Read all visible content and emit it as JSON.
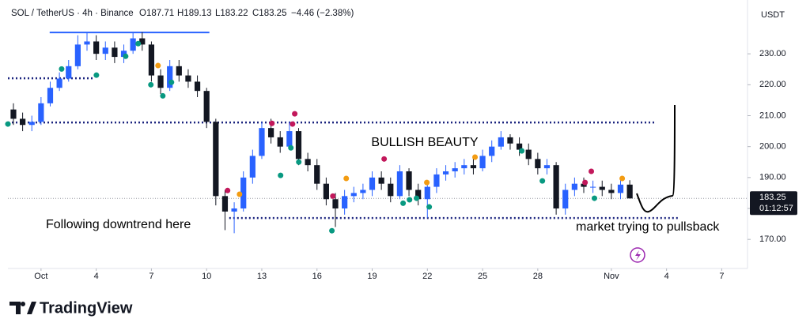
{
  "chart_data": {
    "type": "candlestick",
    "header": {
      "symbol": "SOL / TetherUS · 4h · Binance",
      "o": "O187.71",
      "h": "H189.13",
      "l": "L183.22",
      "c": "C183.25",
      "change": "−4.46 (−2.38%)"
    },
    "currency": "USDT",
    "up_color": "#2962ff",
    "down_color": "#131722",
    "x": [
      -1.5,
      -1,
      -0.5,
      0,
      0.5,
      1,
      1.5,
      2,
      2.5,
      3,
      3.5,
      4,
      4.5,
      5,
      5.5,
      6,
      6.5,
      7,
      7.5,
      8,
      8.5,
      9,
      9.5,
      10,
      10.5,
      11,
      11.5,
      12,
      12.5,
      13,
      13.5,
      14,
      14.5,
      15,
      15.5,
      16,
      16.5,
      17,
      17.5,
      18,
      18.5,
      19,
      19.5,
      20,
      20.5,
      21,
      21.5,
      22,
      22.5,
      23,
      23.5,
      24,
      24.5,
      25,
      25.5,
      26,
      26.5,
      27,
      27.5,
      28,
      28.5,
      29,
      29.5,
      30,
      30.5,
      31,
      31.5,
      32
    ],
    "open": [
      212,
      209,
      207,
      208,
      214,
      219,
      222,
      226,
      233,
      234,
      230,
      232,
      229,
      231,
      235,
      233,
      223,
      219,
      226,
      223,
      221,
      218,
      208,
      184,
      179,
      180,
      190,
      197,
      206,
      203,
      200,
      205,
      196,
      194,
      188,
      183,
      180,
      184,
      185,
      186,
      190,
      188,
      184,
      192,
      186,
      183,
      187,
      191,
      192,
      193,
      194,
      193,
      197,
      200,
      203,
      201,
      199,
      196,
      193,
      194,
      180,
      186,
      188,
      187,
      187,
      186,
      185,
      187.71
    ],
    "high": [
      214,
      211,
      210,
      216,
      221,
      224,
      228,
      236,
      237,
      236,
      234,
      234,
      233,
      237,
      237,
      234,
      225,
      228,
      228,
      225,
      223,
      219,
      209,
      186,
      182,
      192,
      199,
      208,
      209,
      205,
      208,
      206,
      198,
      196,
      190,
      185,
      186,
      187,
      188,
      192,
      192,
      190,
      194,
      193,
      188,
      189,
      193,
      194,
      195,
      196,
      196,
      199,
      202,
      205,
      204,
      203,
      201,
      198,
      196,
      195,
      188,
      190,
      190,
      189,
      189,
      188,
      190,
      189.13
    ],
    "low": [
      207,
      205,
      205,
      207,
      213,
      218,
      221,
      225,
      231,
      228,
      228,
      227,
      227,
      230,
      231,
      221,
      217,
      218,
      221,
      219,
      216,
      206,
      181,
      173,
      172,
      179,
      188,
      196,
      201,
      198,
      199,
      194,
      192,
      186,
      181,
      174,
      178,
      182,
      183,
      184,
      186,
      182,
      183,
      184,
      181,
      177,
      185,
      189,
      190,
      191,
      191,
      192,
      195,
      199,
      199,
      197,
      194,
      191,
      191,
      178,
      178,
      184,
      185,
      185,
      184,
      183,
      183,
      183.22
    ],
    "close": [
      209,
      207,
      208,
      214,
      219,
      222,
      226,
      233,
      234,
      230,
      232,
      229,
      231,
      235,
      233,
      223,
      219,
      226,
      223,
      221,
      218,
      208,
      184,
      179,
      180,
      190,
      197,
      206,
      203,
      200,
      205,
      196,
      194,
      188,
      183,
      180,
      184,
      185,
      186,
      190,
      188,
      184,
      192,
      186,
      183,
      187,
      191,
      192,
      193,
      194,
      193,
      197,
      200,
      203,
      201,
      199,
      196,
      193,
      194,
      180,
      186,
      188,
      187,
      187,
      186,
      185,
      187.71,
      183.25
    ],
    "xlim": [
      -1.8,
      38.4
    ],
    "ylim": [
      160.6,
      247.4
    ],
    "xticks": [
      {
        "value": 0,
        "label": "Oct"
      },
      3,
      6,
      9,
      12,
      15,
      18,
      21,
      24,
      27,
      {
        "value": 31,
        "label": "Nov"
      },
      34,
      37
    ],
    "xtick_labels": [
      "Oct",
      "4",
      "7",
      "10",
      "13",
      "16",
      "19",
      "22",
      "25",
      "28",
      "Nov",
      "4",
      "7"
    ],
    "yticks": [
      {
        "value": 230,
        "label": "230.00"
      },
      {
        "value": 220,
        "label": "220.00"
      },
      {
        "value": 210,
        "label": "210.00"
      },
      {
        "value": 200,
        "label": "200.00"
      },
      {
        "value": 190,
        "label": "190.00"
      },
      {
        "value": 180,
        "label": "180.00"
      },
      {
        "value": 170,
        "label": "170.00"
      }
    ],
    "last_price": {
      "value": 183.25,
      "label": "183.25",
      "countdown": "01:12:57"
    },
    "levels": [
      {
        "value": 236.9,
        "x": [
          0.47,
          9.15
        ],
        "color": "#2962ff",
        "dotted": false
      },
      {
        "value": 222.1,
        "x": [
          -1.8,
          2.92
        ],
        "color": "#1a237e",
        "dotted": true
      },
      {
        "value": 207.8,
        "x": [
          -1.8,
          33.4
        ],
        "color": "#1a237e",
        "dotted": true
      },
      {
        "value": 176.9,
        "x": [
          10.23,
          34.7
        ],
        "color": "#1a237e",
        "dotted": true
      }
    ],
    "signals": [
      {
        "color": "#089981",
        "x": [
          -1.8,
          1.12,
          3.01,
          4.6,
          5.28,
          5.97,
          6.62,
          7.09,
          13.02,
          13.58,
          14.01,
          15.81,
          19.68,
          20.03,
          20.41,
          21.1,
          26.13,
          27.25,
          30.08
        ],
        "y": [
          207.3,
          225.1,
          223.1,
          229.2,
          233.3,
          220,
          216.4,
          220.8,
          190.7,
          199.6,
          195,
          172.8,
          181.7,
          182.8,
          183.3,
          180.5,
          198.6,
          188.9,
          183.3
        ]
      },
      {
        "color": "#c2185b",
        "x": [
          10.14,
          12.55,
          13.67,
          13.79,
          15.86,
          18.65,
          29.57,
          29.91
        ],
        "y": [
          185.8,
          207.5,
          207.3,
          210.6,
          184,
          196,
          188.4,
          192
        ]
      },
      {
        "color": "#f39c12",
        "x": [
          6.36,
          10.79,
          16.59,
          20.97,
          23.59,
          31.59
        ],
        "y": [
          226.2,
          184.6,
          189.7,
          188.4,
          196.6,
          189.7
        ]
      }
    ],
    "annotations": [
      "BULLISH BEAUTY",
      "Following downtrend here",
      "market trying to pullsback"
    ],
    "brand": "TradingView"
  }
}
